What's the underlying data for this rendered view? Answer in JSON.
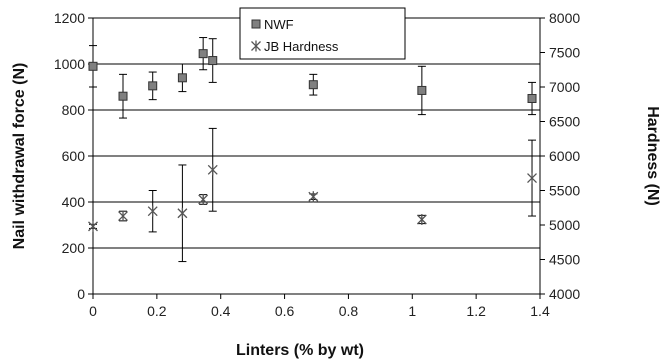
{
  "chart_data": {
    "type": "scatter",
    "xlabel": "Linters (% by wt)",
    "ylabel": "Nail withdrawal force (N)",
    "y2label": "Hardness (N)",
    "xlim": [
      0,
      1.4
    ],
    "xticks": [
      0,
      0.2,
      0.4,
      0.6,
      0.8,
      1,
      1.2,
      1.4
    ],
    "xtick_labels": [
      "0",
      "0.2",
      "0.4",
      "0.6",
      "0.8",
      "1",
      "1.2",
      "1.4"
    ],
    "ylim": [
      0,
      1200
    ],
    "yticks": [
      0,
      200,
      400,
      600,
      800,
      1000,
      1200
    ],
    "ytick_labels": [
      "0",
      "200",
      "400",
      "600",
      "800",
      "1000",
      "1200"
    ],
    "y2lim": [
      4000,
      8000
    ],
    "y2ticks": [
      4000,
      4500,
      5000,
      5500,
      6000,
      6500,
      7000,
      7500,
      8000
    ],
    "y2tick_labels": [
      "4000",
      "4500",
      "5000",
      "5500",
      "6000",
      "6500",
      "7000",
      "7500",
      "8000"
    ],
    "grid": "horizontal",
    "legend_position": "top-center",
    "series": [
      {
        "name": "NWF",
        "axis": "left",
        "marker": "square",
        "color": "#808080",
        "x": [
          0,
          0.094,
          0.187,
          0.28,
          0.345,
          0.375,
          0.69,
          1.03,
          1.375
        ],
        "y": [
          990,
          860,
          905,
          940,
          1045,
          1015,
          910,
          885,
          850
        ],
        "err": [
          90,
          95,
          60,
          60,
          70,
          95,
          45,
          105,
          70
        ]
      },
      {
        "name": "JB Hardness",
        "axis": "right",
        "marker": "asterisk",
        "color": "#555555",
        "x": [
          0,
          0.094,
          0.187,
          0.28,
          0.345,
          0.375,
          0.69,
          1.03,
          1.375
        ],
        "y": [
          4980,
          5130,
          5200,
          5170,
          5370,
          5800,
          5410,
          5080,
          5680
        ],
        "err": [
          30,
          70,
          300,
          700,
          70,
          600,
          40,
          60,
          550
        ]
      }
    ]
  }
}
